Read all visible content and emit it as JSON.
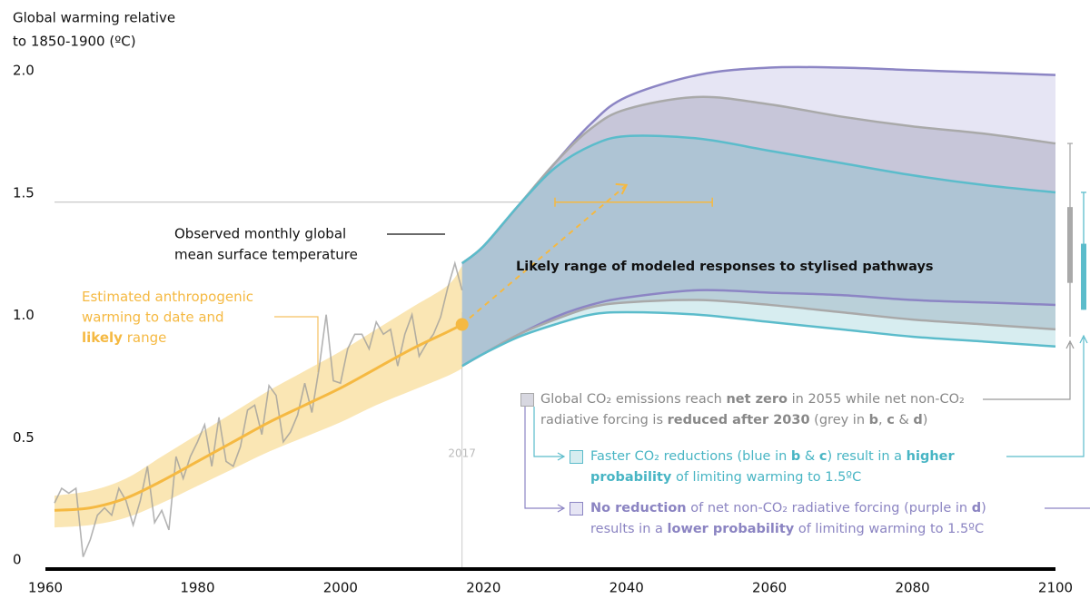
{
  "chart_data": {
    "type": "line",
    "y_label": [
      "Global warming relative",
      "to 1850-1900  (ºC)"
    ],
    "xlim": [
      1960,
      2100
    ],
    "xticks": [
      1960,
      1980,
      2000,
      2020,
      2040,
      2060,
      2080,
      2100
    ],
    "ylim": [
      0,
      2
    ],
    "yticks": [
      0,
      0.5,
      {
        "value": 1,
        "label": "1.0"
      },
      1.5,
      {
        "value": 2,
        "label": "2.0"
      }
    ],
    "reference_line": 1.5,
    "marker_year": 2017,
    "observed": {
      "label": [
        "Observed monthly global",
        "mean surface temperature"
      ],
      "color": "#9a9a9a",
      "x": [
        1960,
        1961,
        1962,
        1963,
        1964,
        1965,
        1966,
        1967,
        1968,
        1969,
        1970,
        1971,
        1972,
        1973,
        1974,
        1975,
        1976,
        1977,
        1978,
        1979,
        1980,
        1981,
        1982,
        1983,
        1984,
        1985,
        1986,
        1987,
        1988,
        1989,
        1990,
        1991,
        1992,
        1993,
        1994,
        1995,
        1996,
        1997,
        1998,
        1999,
        2000,
        2001,
        2002,
        2003,
        2004,
        2005,
        2006,
        2007,
        2008,
        2009,
        2010,
        2011,
        2012,
        2013,
        2014,
        2015,
        2016,
        2017
      ],
      "values": [
        0.27,
        0.33,
        0.31,
        0.33,
        0.05,
        0.12,
        0.22,
        0.25,
        0.22,
        0.33,
        0.28,
        0.18,
        0.28,
        0.42,
        0.19,
        0.24,
        0.16,
        0.46,
        0.37,
        0.46,
        0.52,
        0.59,
        0.42,
        0.62,
        0.44,
        0.42,
        0.5,
        0.65,
        0.67,
        0.55,
        0.75,
        0.71,
        0.52,
        0.56,
        0.63,
        0.76,
        0.64,
        0.82,
        1.04,
        0.77,
        0.76,
        0.9,
        0.96,
        0.96,
        0.9,
        1.01,
        0.96,
        0.98,
        0.83,
        0.96,
        1.04,
        0.87,
        0.92,
        0.96,
        1.03,
        1.15,
        1.25,
        1.14
      ]
    },
    "anthropogenic": {
      "label": [
        [
          {
            "text": "Estimated anthropogenic"
          }
        ],
        [
          {
            "text": "warming to date and"
          }
        ],
        [
          {
            "text": "likely",
            "bold": true
          },
          {
            "text": " range"
          }
        ]
      ],
      "color": "#f5b942",
      "band_color": "#f8d98c",
      "x": [
        1960,
        1965,
        1970,
        1975,
        1980,
        1985,
        1990,
        1995,
        2000,
        2005,
        2010,
        2015,
        2017
      ],
      "values": [
        0.24,
        0.25,
        0.29,
        0.36,
        0.44,
        0.52,
        0.6,
        0.67,
        0.74,
        0.82,
        0.9,
        0.97,
        1.0
      ],
      "lower": [
        0.17,
        0.18,
        0.21,
        0.27,
        0.34,
        0.41,
        0.48,
        0.54,
        0.6,
        0.67,
        0.73,
        0.79,
        0.82
      ],
      "upper": [
        0.3,
        0.32,
        0.37,
        0.46,
        0.55,
        0.64,
        0.73,
        0.81,
        0.89,
        0.98,
        1.07,
        1.16,
        1.24
      ]
    },
    "projection": {
      "x": [
        2017,
        2040
      ],
      "values": [
        1.0,
        1.57
      ],
      "range_x": [
        2030,
        2052
      ],
      "range_value": 1.5
    },
    "pathways_title": "Likely range of modeled responses to stylised pathways",
    "pathways_x": [
      2017,
      2020,
      2025,
      2030,
      2035,
      2040,
      2050,
      2060,
      2070,
      2080,
      2090,
      2100
    ],
    "pathways": [
      {
        "color": "#a9a9a9",
        "fill": "rgba(140,140,165,0.35)",
        "text_color": "#888888",
        "lines": [
          [
            {
              "text": "Global CO₂ emissions reach "
            },
            {
              "text": "net zero",
              "bold": true
            },
            {
              "text": " in 2055 while net non-CO₂"
            }
          ],
          [
            {
              "text": "radiative forcing is "
            },
            {
              "text": "reduced after 2030",
              "bold": true
            },
            {
              "text": " (grey in "
            },
            {
              "text": "b",
              "bold": true
            },
            {
              "text": ", "
            },
            {
              "text": "c",
              "bold": true
            },
            {
              "text": " & "
            },
            {
              "text": "d",
              "bold": true
            },
            {
              "text": ")"
            }
          ]
        ],
        "upper": [
          1.25,
          1.32,
          1.49,
          1.66,
          1.8,
          1.88,
          1.93,
          1.9,
          1.85,
          1.81,
          1.78,
          1.74
        ],
        "lower": [
          0.83,
          0.88,
          0.96,
          1.02,
          1.07,
          1.09,
          1.1,
          1.08,
          1.05,
          1.02,
          1.0,
          0.98
        ],
        "whisker": [
          0.95,
          1.74
        ],
        "box": [
          1.17,
          1.48
        ]
      },
      {
        "color": "#5bbccb",
        "fill": "rgba(110,190,200,0.28)",
        "text_color": "#48b5c4",
        "lines": [
          [
            {
              "text": "Faster CO₂ reductions (blue in "
            },
            {
              "text": "b",
              "bold": true
            },
            {
              "text": " & "
            },
            {
              "text": "c",
              "bold": true
            },
            {
              "text": ") result in a "
            },
            {
              "text": "higher",
              "bold": true
            }
          ],
          [
            {
              "text": "probability",
              "bold": true
            },
            {
              "text": " of limiting warming to 1.5ºC"
            }
          ]
        ],
        "upper": [
          1.25,
          1.32,
          1.49,
          1.64,
          1.73,
          1.77,
          1.76,
          1.71,
          1.66,
          1.61,
          1.57,
          1.54
        ],
        "lower": [
          0.83,
          0.88,
          0.95,
          1.0,
          1.04,
          1.05,
          1.04,
          1.01,
          0.98,
          0.95,
          0.93,
          0.91
        ],
        "whisker": [
          1.06,
          1.54
        ],
        "box": [
          1.06,
          1.33
        ]
      },
      {
        "color": "#8c85c4",
        "fill": "#e6e5f4",
        "text_color": "#8b84c2",
        "lines": [
          [
            {
              "text": "No reduction",
              "bold": true
            },
            {
              "text": " of net non-CO₂ radiative forcing (purple in "
            },
            {
              "text": "d",
              "bold": true
            },
            {
              "text": ")"
            }
          ],
          [
            {
              "text": "results in a "
            },
            {
              "text": "lower probability",
              "bold": true
            },
            {
              "text": " of limiting warming to 1.5ºC"
            }
          ]
        ],
        "upper": [
          1.25,
          1.32,
          1.49,
          1.66,
          1.82,
          1.93,
          2.02,
          2.05,
          2.05,
          2.04,
          2.03,
          2.02
        ],
        "lower": [
          0.83,
          0.88,
          0.96,
          1.03,
          1.08,
          1.11,
          1.14,
          1.13,
          1.12,
          1.1,
          1.09,
          1.08
        ]
      }
    ]
  }
}
